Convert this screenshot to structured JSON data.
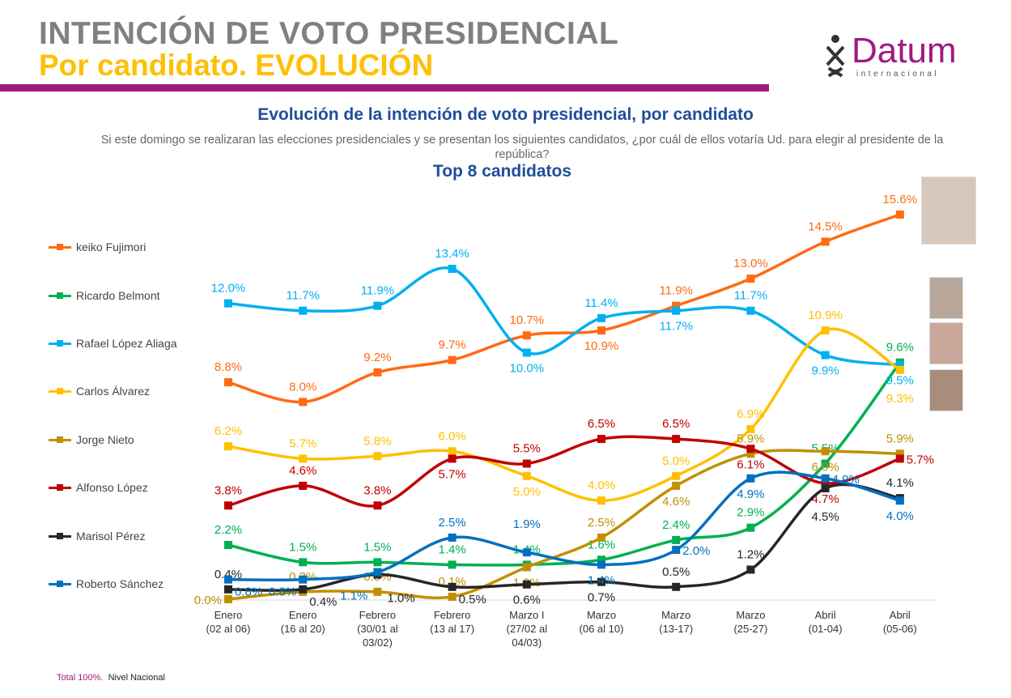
{
  "header": {
    "title": "INTENCIÓN DE VOTO PRESIDENCIAL",
    "subtitle": "Por candidato. EVOLUCIÓN"
  },
  "logo": {
    "name": "Datum",
    "sub": "internacional"
  },
  "question": "Si este domingo se realizaran las elecciones presidenciales y se presentan los siguientes candidatos, ¿por cuál de ellos votaría Ud. para elegir al presidente de la república?",
  "footer": {
    "total": "Total 100%.",
    "scope": "Nivel Nacional"
  },
  "chart_data": {
    "type": "line",
    "title": "Evolución de la intención de voto presidencial, por candidato",
    "subtitle": "Top 8  candidatos",
    "legend": "left",
    "grid": false,
    "ylim": [
      0,
      16
    ],
    "categories": [
      [
        "Enero",
        "(02 al 06)"
      ],
      [
        "Enero",
        "(16 al 20)"
      ],
      [
        "Febrero",
        "(30/01 al",
        "03/02)"
      ],
      [
        "Febrero",
        "(13 al 17)"
      ],
      [
        "Marzo I",
        "(27/02 al",
        "04/03)"
      ],
      [
        "Marzo",
        "(06 al 10)"
      ],
      [
        "Marzo",
        "(13-17)"
      ],
      [
        "Marzo",
        "(25-27)"
      ],
      [
        "Abril",
        "(01-04)"
      ],
      [
        "Abril",
        "(05-06)"
      ]
    ],
    "series": [
      {
        "name": "keiko Fujimori",
        "color": "#ff6a13",
        "values": [
          8.8,
          8.0,
          9.2,
          9.7,
          10.7,
          10.9,
          11.9,
          13.0,
          14.5,
          15.6
        ]
      },
      {
        "name": "Ricardo Belmont",
        "color": "#00b050",
        "values": [
          2.2,
          1.5,
          1.5,
          1.4,
          1.4,
          1.6,
          2.4,
          2.9,
          5.5,
          9.6
        ]
      },
      {
        "name": "Rafael López Aliaga",
        "color": "#00b0f0",
        "values": [
          12.0,
          11.7,
          11.9,
          13.4,
          10.0,
          11.4,
          11.7,
          11.7,
          9.9,
          9.5
        ]
      },
      {
        "name": "Carlos Álvarez",
        "color": "#ffc000",
        "values": [
          6.2,
          5.7,
          5.8,
          6.0,
          5.0,
          4.0,
          5.0,
          6.9,
          10.9,
          9.3
        ]
      },
      {
        "name": "Jorge Nieto",
        "color": "#c09000",
        "values": [
          0.0,
          0.3,
          0.3,
          0.1,
          1.3,
          2.5,
          4.6,
          5.9,
          6.0,
          5.9
        ]
      },
      {
        "name": "Alfonso López",
        "color": "#c00000",
        "values": [
          3.8,
          4.6,
          3.8,
          5.7,
          5.5,
          6.5,
          6.5,
          6.1,
          4.7,
          5.7
        ]
      },
      {
        "name": "Marisol Pérez",
        "color": "#262626",
        "values": [
          0.4,
          0.4,
          1.0,
          0.5,
          0.6,
          0.7,
          0.5,
          1.2,
          4.5,
          4.1
        ]
      },
      {
        "name": "Roberto Sánchez",
        "color": "#0070c0",
        "values": [
          0.8,
          0.8,
          1.1,
          2.5,
          1.9,
          1.4,
          2.0,
          4.9,
          4.9,
          4.0
        ]
      }
    ]
  }
}
